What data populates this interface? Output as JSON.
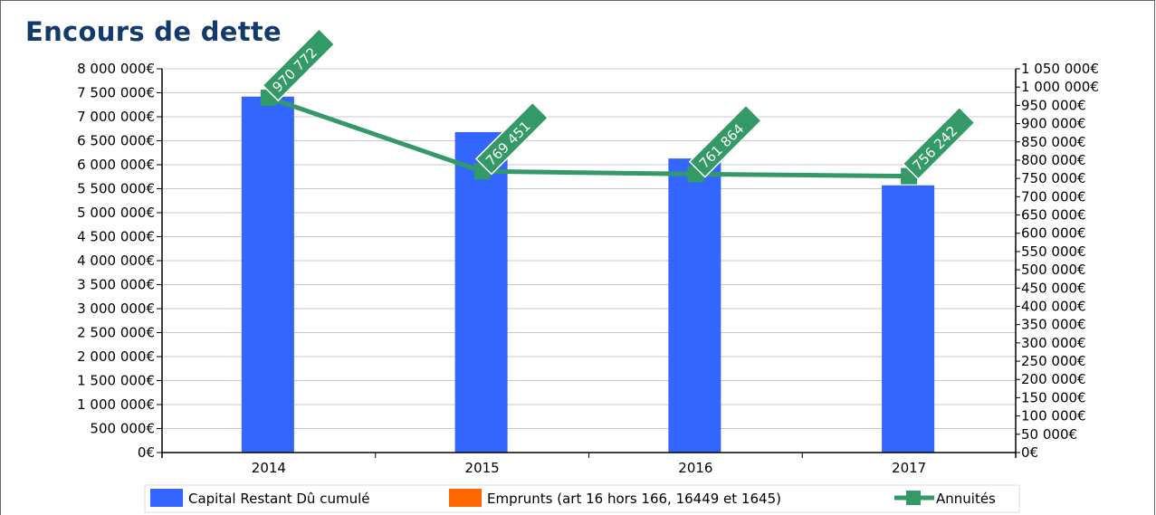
{
  "title": "Encours de dette",
  "chart_data": {
    "type": "bar",
    "categories": [
      "2014",
      "2015",
      "2016",
      "2017"
    ],
    "series": [
      {
        "name": "Capital Restant Dû cumulé",
        "type": "bar",
        "axis": "left",
        "color": "#3366ff",
        "values": [
          7420000,
          6680000,
          6130000,
          5570000
        ]
      },
      {
        "name": "Emprunts (art 16 hors 166, 16449 et 1645)",
        "type": "bar",
        "axis": "left",
        "color": "#ff6600",
        "values": [
          0,
          0,
          0,
          0
        ]
      },
      {
        "name": "Annuités",
        "type": "line",
        "axis": "right",
        "color": "#339966",
        "values": [
          970772,
          769451,
          761864,
          756242
        ],
        "data_labels": [
          "970 772",
          "769 451",
          "761 864",
          "756 242"
        ]
      }
    ],
    "y_left": {
      "range": [
        0,
        8000000
      ],
      "ticks": [
        "0€",
        "500 000€",
        "1 000 000€",
        "1 500 000€",
        "2 000 000€",
        "2 500 000€",
        "3 000 000€",
        "3 500 000€",
        "4 000 000€",
        "4 500 000€",
        "5 000 000€",
        "5 500 000€",
        "6 000 000€",
        "6 500 000€",
        "7 000 000€",
        "7 500 000€",
        "8 000 000€"
      ]
    },
    "y_right": {
      "range": [
        0,
        1050000
      ],
      "ticks": [
        "0€",
        "50 000€",
        "100 000€",
        "150 000€",
        "200 000€",
        "250 000€",
        "300 000€",
        "350 000€",
        "400 000€",
        "450 000€",
        "500 000€",
        "550 000€",
        "600 000€",
        "650 000€",
        "700 000€",
        "750 000€",
        "800 000€",
        "850 000€",
        "900 000€",
        "950 000€",
        "1 000 000€",
        "1 050 000€"
      ]
    },
    "grid": true,
    "legend_position": "bottom"
  }
}
